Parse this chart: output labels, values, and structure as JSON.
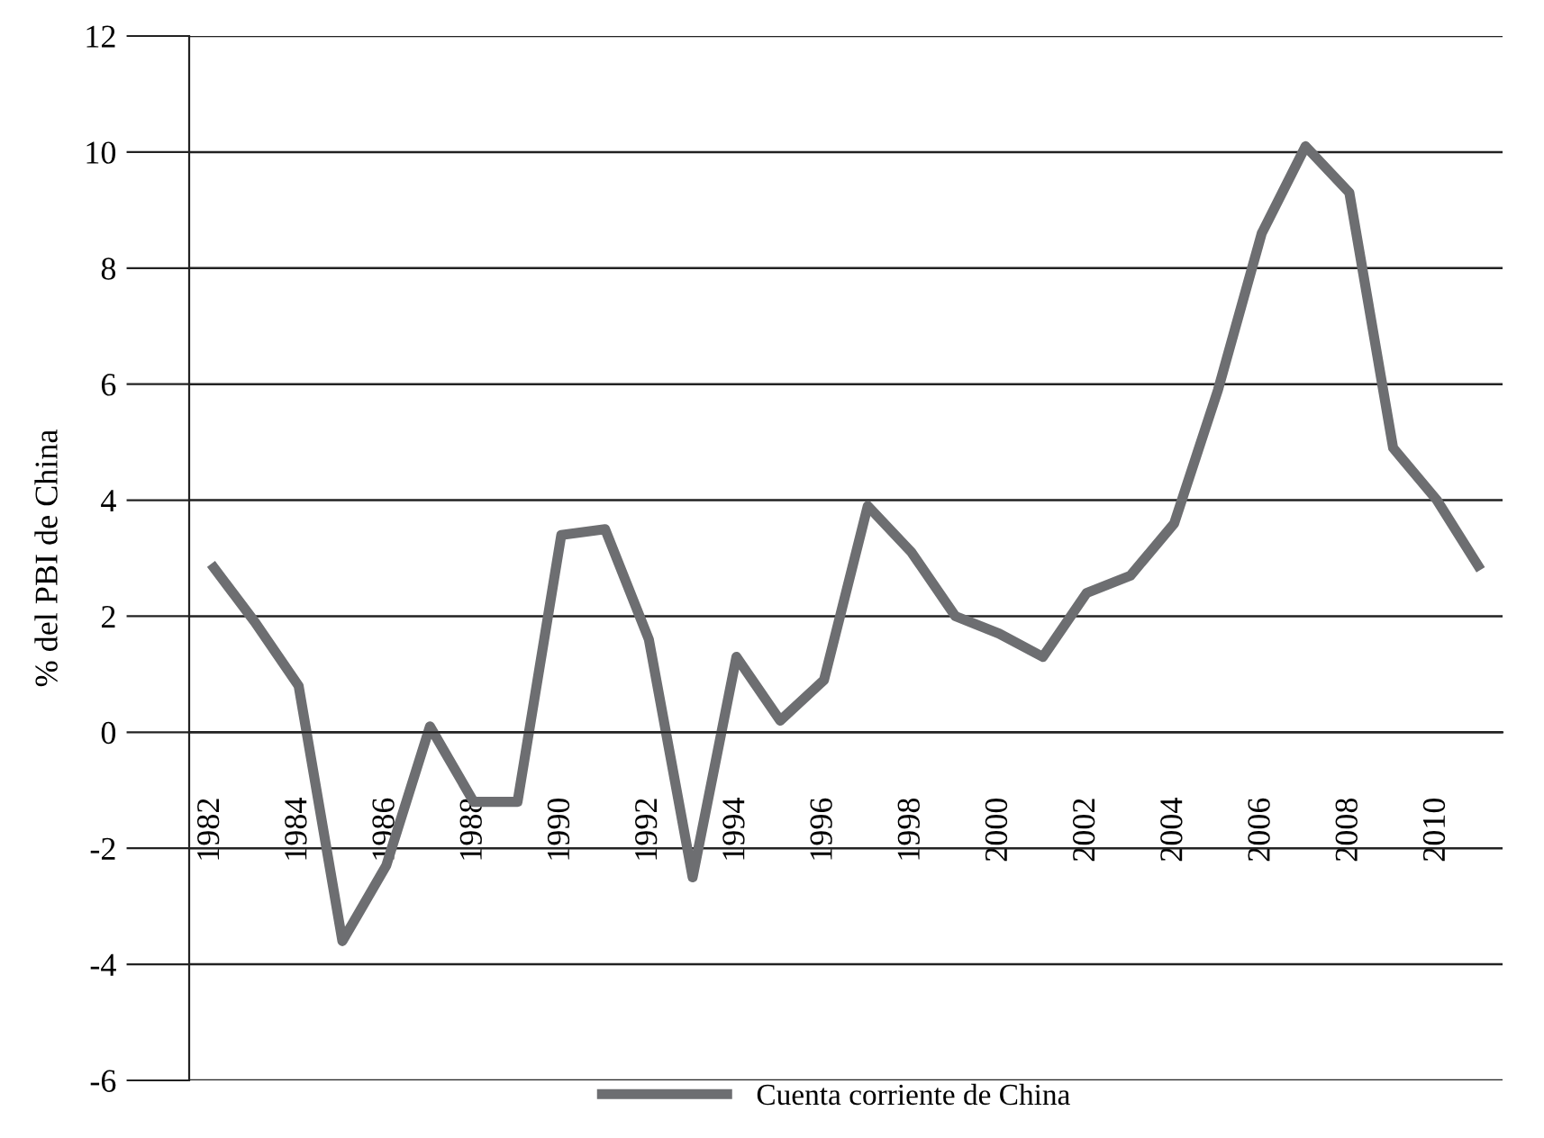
{
  "chart_data": {
    "type": "line",
    "ylabel": "% del PBI de China",
    "categories": [
      "1982",
      null,
      "1984",
      null,
      "1986",
      null,
      "1988",
      null,
      "1990",
      null,
      "1992",
      null,
      "1994",
      null,
      "1996",
      null,
      "1998",
      null,
      "2000",
      null,
      "2002",
      null,
      "2004",
      null,
      "2006",
      null,
      "2008",
      null,
      "2010",
      null
    ],
    "series": [
      {
        "name": "Cuenta corriente de China",
        "color": "#6d6e71",
        "values": [
          2.9,
          1.9,
          0.8,
          -3.6,
          -2.3,
          0.1,
          -1.2,
          -1.2,
          3.4,
          3.5,
          1.6,
          -2.5,
          1.3,
          0.2,
          0.9,
          3.9,
          3.1,
          2.0,
          1.7,
          1.3,
          2.4,
          2.7,
          3.6,
          5.9,
          8.6,
          10.1,
          9.3,
          4.9,
          4.0,
          2.8
        ]
      }
    ],
    "ylim": [
      -6,
      12
    ],
    "yticks": [
      {
        "value": -6,
        "label": "-6"
      },
      {
        "value": -4,
        "label": "-4"
      },
      {
        "value": -2,
        "label": "-2"
      },
      0,
      2,
      4,
      6,
      8,
      10,
      12
    ],
    "grid": "y",
    "legend": "bottom",
    "marker": "none",
    "line_style": "solid"
  }
}
